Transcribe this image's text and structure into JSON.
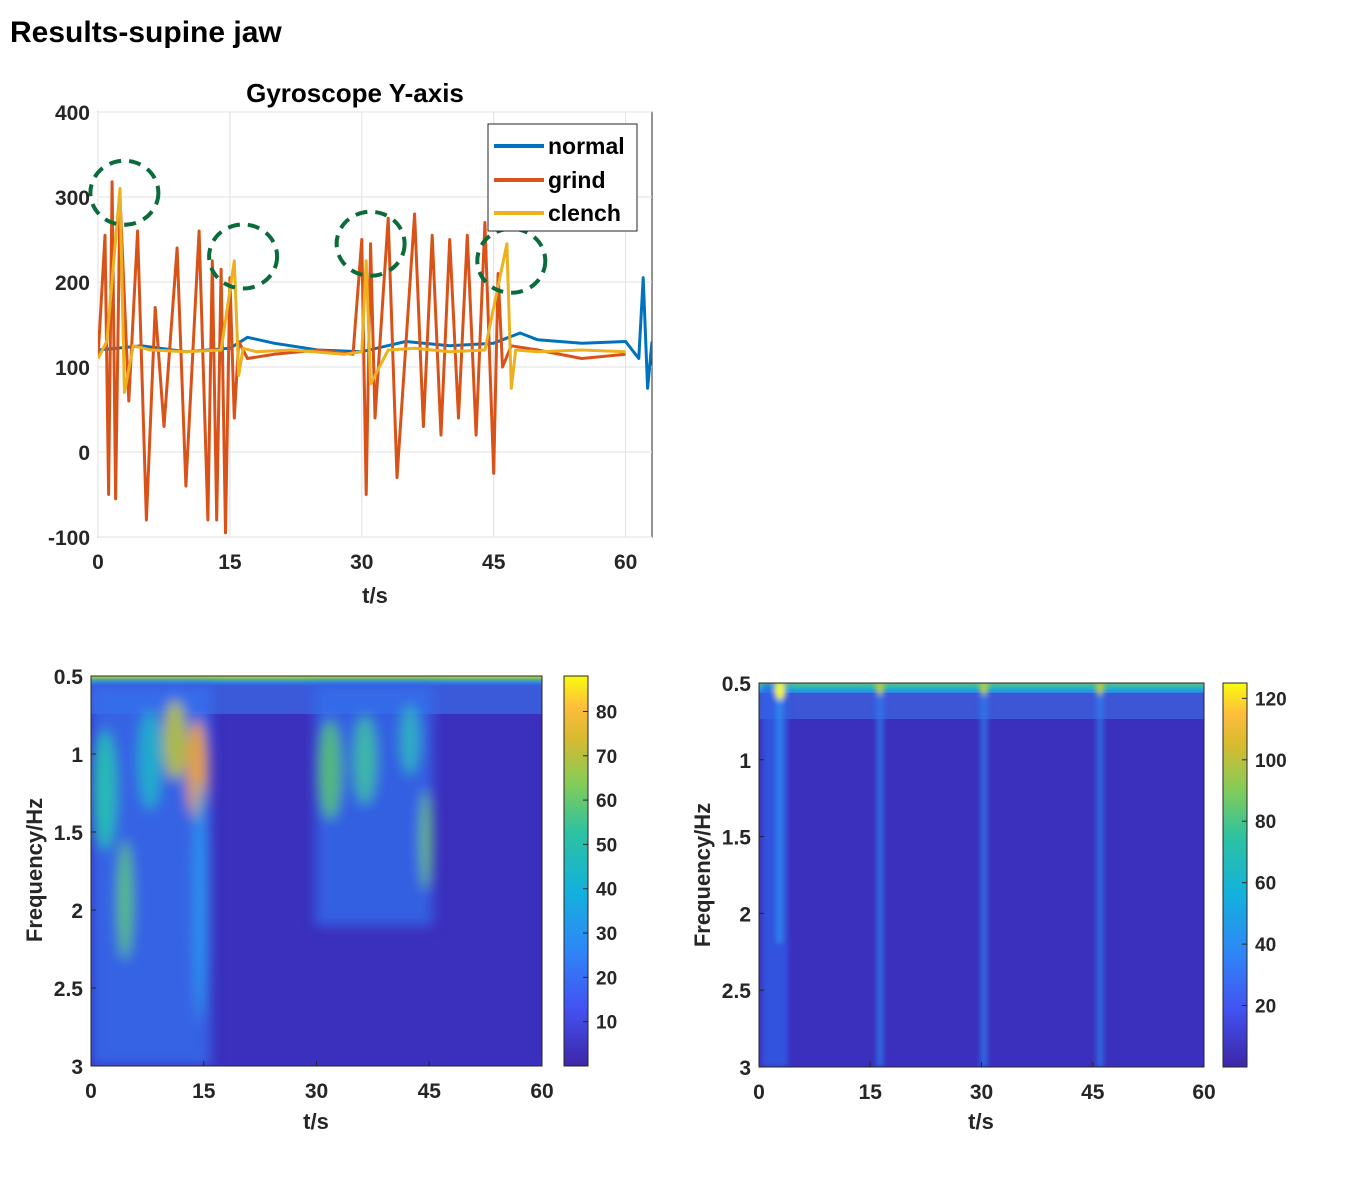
{
  "slide": {
    "title": "Results-supine jaw"
  },
  "chart_data": [
    {
      "type": "line",
      "title": "Gyroscope Y-axis",
      "xlabel": "t/s",
      "ylabel": "",
      "xlim": [
        0,
        63
      ],
      "ylim": [
        -100,
        400
      ],
      "xticks": [
        0,
        15,
        30,
        45,
        60
      ],
      "yticks": [
        -100,
        0,
        100,
        200,
        300,
        400
      ],
      "grid": true,
      "legend": "top-right",
      "series": [
        {
          "name": "normal",
          "color": "#0072BD",
          "x": [
            0,
            5,
            10,
            15,
            17,
            20,
            25,
            30,
            35,
            40,
            45,
            48,
            50,
            55,
            60,
            61.5,
            62,
            62.5,
            63
          ],
          "y": [
            120,
            125,
            118,
            122,
            135,
            128,
            120,
            118,
            130,
            125,
            128,
            140,
            132,
            128,
            130,
            110,
            205,
            75,
            130
          ]
        },
        {
          "name": "grind",
          "color": "#D95319",
          "x": [
            0,
            0.8,
            1.2,
            1.6,
            2.0,
            2.5,
            3.5,
            4.5,
            5.5,
            6.5,
            7.5,
            9,
            10,
            11.5,
            12.5,
            13,
            13.5,
            14,
            14.5,
            15,
            15.5,
            16,
            17,
            20,
            25,
            29,
            30,
            30.5,
            31,
            31.5,
            33,
            34,
            36,
            37,
            38,
            39,
            40,
            41,
            42,
            43,
            44,
            45,
            45.5,
            46,
            47,
            50,
            55,
            60
          ],
          "y": [
            110,
            255,
            -50,
            318,
            -55,
            300,
            60,
            260,
            -80,
            170,
            30,
            240,
            -40,
            260,
            -80,
            225,
            -80,
            215,
            -95,
            205,
            40,
            130,
            110,
            115,
            120,
            115,
            250,
            -50,
            245,
            40,
            275,
            -30,
            280,
            30,
            255,
            20,
            250,
            40,
            255,
            20,
            270,
            -25,
            210,
            100,
            125,
            120,
            110,
            115
          ]
        },
        {
          "name": "clench",
          "color": "#EDB120",
          "x": [
            0,
            1,
            2.5,
            3,
            4,
            6,
            10,
            14,
            15.5,
            16,
            16.5,
            18,
            22,
            28,
            30,
            30.5,
            31,
            33,
            36,
            40,
            44,
            46.5,
            47,
            47.5,
            50,
            55,
            60
          ],
          "y": [
            110,
            130,
            310,
            70,
            125,
            120,
            118,
            120,
            225,
            90,
            122,
            118,
            120,
            115,
            118,
            225,
            80,
            120,
            122,
            118,
            120,
            245,
            75,
            120,
            118,
            120,
            118
          ]
        }
      ],
      "annotations": [
        "dashed ellipse t≈3",
        "dashed ellipse t≈16.5",
        "dashed ellipse t≈31",
        "dashed ellipse t≈47"
      ]
    },
    {
      "type": "heatmap",
      "xlabel": "t/s",
      "ylabel": "Frequency/Hz",
      "xlim": [
        0,
        60
      ],
      "ylim": [
        0.5,
        3
      ],
      "xticks": [
        0,
        15,
        30,
        45,
        60
      ],
      "yticks": [
        0.5,
        1,
        1.5,
        2,
        2.5,
        3
      ],
      "colorbar": {
        "min": 0,
        "max": 88,
        "ticks": [
          10,
          20,
          30,
          40,
          50,
          60,
          70,
          80
        ]
      },
      "hot_regions": [
        {
          "t_start": 0,
          "t_end": 15.5,
          "f_start": 0.5,
          "f_end": 3.0,
          "peak": 75
        },
        {
          "t_start": 30,
          "t_end": 45,
          "f_start": 0.5,
          "f_end": 2.0,
          "peak": 55
        }
      ]
    },
    {
      "type": "heatmap",
      "xlabel": "t/s",
      "ylabel": "Frequency/Hz",
      "xlim": [
        0,
        60
      ],
      "ylim": [
        0.5,
        3
      ],
      "xticks": [
        0,
        15,
        30,
        45,
        60
      ],
      "yticks": [
        0.5,
        1,
        1.5,
        2,
        2.5,
        3
      ],
      "colorbar": {
        "min": 0,
        "max": 125,
        "ticks": [
          20,
          40,
          60,
          80,
          100,
          120
        ]
      },
      "hot_regions": [
        {
          "t_start": 2.5,
          "t_end": 3.0,
          "f_start": 0.5,
          "f_end": 3.0,
          "peak": 120
        },
        {
          "t_start": 16,
          "t_end": 16.5,
          "f_start": 0.5,
          "f_end": 3.0,
          "peak": 70
        },
        {
          "t_start": 30.5,
          "t_end": 31,
          "f_start": 0.5,
          "f_end": 3.0,
          "peak": 70
        },
        {
          "t_start": 46.5,
          "t_end": 47,
          "f_start": 0.5,
          "f_end": 3.0,
          "peak": 70
        }
      ]
    }
  ]
}
